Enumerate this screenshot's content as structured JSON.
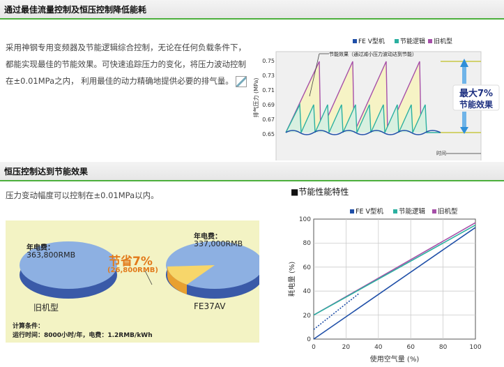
{
  "section1": {
    "title": "通过最佳流量控制及恒压控制降低能耗",
    "paragraph": "采用神钢专用变频器及节能逻辑综合控制，无论在任何负载条件下，都能实现最佳的节能效果。可快速追踪压力的变化，将压力波动控制在±0.01MPa之内， 利用最佳的动力精确地提供必要的排气量。"
  },
  "section2": {
    "title": "恒压控制达到节能效果",
    "paragraph": "压力变动幅度可以控制在±0.01MPa以内。"
  },
  "pressure_chart": {
    "legend": [
      "FE V型机",
      "节能逻辑",
      "旧机型"
    ],
    "ylabel": "排气压力 (MPa)",
    "xlabel": "时间",
    "yticks": [
      "0.75",
      "0.73",
      "0.71",
      "0.69",
      "0.67",
      "0.65"
    ],
    "annotation": "节能效果（通过减小压力波动达到节能）",
    "badge_line1": "最大7%",
    "badge_line2": "节能效果"
  },
  "pie_panel": {
    "old_label": "年电费：",
    "old_value": "363,800RMB",
    "new_label": "年电费：",
    "new_value": "337,000RMB",
    "saving_title": "节省7%",
    "saving_value": "(26,800RMB)",
    "old_model": "旧机型",
    "new_model": "FE37AV",
    "calc_title": "计算条件：",
    "calc_detail": "运行时间：8000小时/年，电费：1.2RMB/kWh"
  },
  "perf_chart": {
    "title": "■节能性能特性",
    "legend": [
      "FE V型机",
      "节能逻辑",
      "旧机型"
    ],
    "ylabel": "耗电量 (%)",
    "xlabel": "使用空气量 (%)",
    "xticks": [
      "0",
      "20",
      "40",
      "60",
      "80",
      "100"
    ],
    "yticks": [
      "0",
      "20",
      "40",
      "60",
      "80",
      "100"
    ]
  },
  "colors": {
    "fev": "#1f4fa8",
    "logic": "#2bb0a0",
    "old": "#a64fa8",
    "accent": "#4caf3c"
  },
  "chart_data": [
    {
      "type": "line",
      "ylabel": "排气压力 (MPa)",
      "xlabel": "时间",
      "ylim": [
        0.64,
        0.76
      ],
      "series": [
        {
          "name": "旧机型",
          "values": [
            0.65,
            0.75,
            0.65,
            0.75,
            0.65,
            0.75,
            0.65,
            0.75,
            0.65
          ]
        },
        {
          "name": "节能逻辑",
          "values": [
            0.65,
            0.67,
            0.65,
            0.67,
            0.65,
            0.67,
            0.65,
            0.67,
            0.65
          ]
        },
        {
          "name": "FE V型机",
          "values": [
            0.65,
            0.652,
            0.65,
            0.652,
            0.65,
            0.652,
            0.65,
            0.652,
            0.65
          ]
        }
      ]
    },
    {
      "type": "pie",
      "categories": [
        "旧机型",
        "FE37AV"
      ],
      "values": [
        363800,
        337000
      ],
      "saving": 26800
    },
    {
      "type": "line",
      "xlabel": "使用空气量 (%)",
      "ylabel": "耗电量 (%)",
      "xlim": [
        0,
        100
      ],
      "ylim": [
        0,
        100
      ],
      "series": [
        {
          "name": "旧机型",
          "x": [
            0,
            100
          ],
          "y": [
            20,
            97
          ]
        },
        {
          "name": "节能逻辑",
          "x": [
            0,
            100
          ],
          "y": [
            20,
            95
          ]
        },
        {
          "name": "FE V型机",
          "x": [
            0,
            100
          ],
          "y": [
            0,
            93
          ]
        }
      ]
    }
  ]
}
